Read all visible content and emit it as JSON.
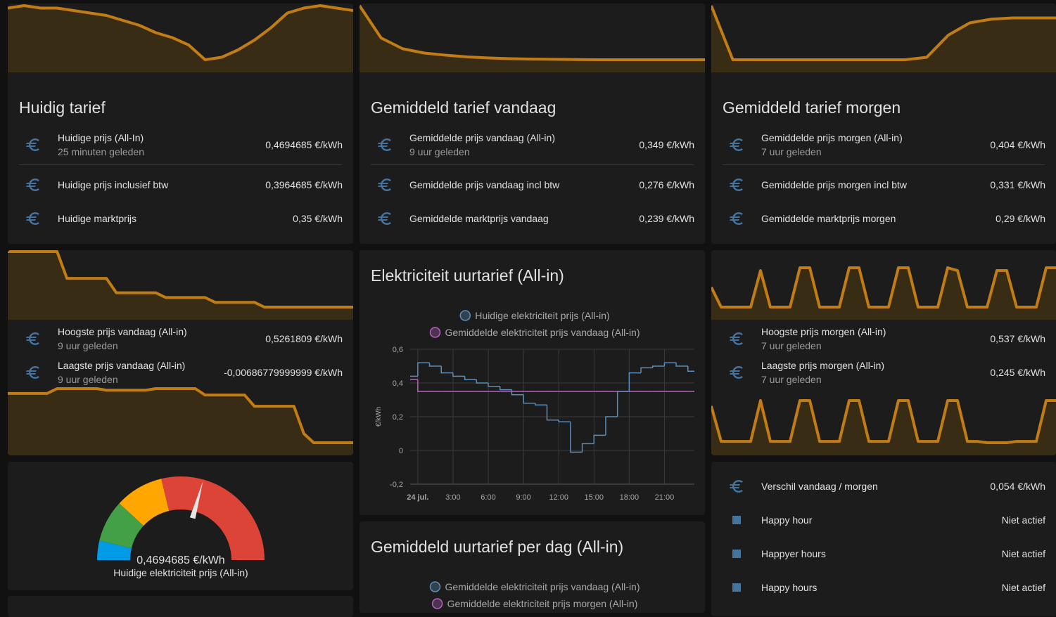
{
  "cards": [
    {
      "title": "Huidig tarief",
      "trend": [
        0.52,
        0.53,
        0.52,
        0.52,
        0.51,
        0.5,
        0.49,
        0.47,
        0.45,
        0.42,
        0.4,
        0.37,
        0.31,
        0.32,
        0.35,
        0.39,
        0.44,
        0.5,
        0.52,
        0.53,
        0.52,
        0.51
      ],
      "rows": [
        {
          "name": "Huidige prijs (All-In)",
          "secondary": "25 minuten geleden",
          "state": "0,4694685 €/kWh"
        },
        {
          "name": "Huidige prijs inclusief btw",
          "state": "0,3964685 €/kWh"
        },
        {
          "name": "Huidige marktprijs",
          "state": "0,35 €/kWh"
        }
      ]
    },
    {
      "title": "Gemiddeld tarief vandaag",
      "trend": [
        0.6,
        0.45,
        0.4,
        0.38,
        0.37,
        0.362,
        0.357,
        0.354,
        0.352,
        0.351,
        0.35,
        0.349,
        0.349,
        0.349,
        0.349,
        0.349,
        0.349
      ],
      "rows": [
        {
          "name": "Gemiddelde prijs vandaag (All-in)",
          "secondary": "9 uur geleden",
          "state": "0,349 €/kWh"
        },
        {
          "name": "Gemiddelde prijs vandaag incl btw",
          "state": "0,276 €/kWh"
        },
        {
          "name": "Gemiddelde marktprijs vandaag",
          "state": "0,239 €/kWh"
        }
      ]
    },
    {
      "title": "Gemiddeld tarief morgen",
      "trend": [
        0.55,
        0.33,
        0.33,
        0.33,
        0.33,
        0.33,
        0.33,
        0.33,
        0.33,
        0.33,
        0.34,
        0.43,
        0.48,
        0.495,
        0.5,
        0.5,
        0.5
      ],
      "rows": [
        {
          "name": "Gemiddelde prijs morgen (All-in)",
          "secondary": "7 uur geleden",
          "state": "0,404 €/kWh"
        },
        {
          "name": "Gemiddelde prijs morgen incl btw",
          "state": "0,331 €/kWh"
        },
        {
          "name": "Gemiddelde marktprijs morgen",
          "state": "0,29 €/kWh"
        }
      ]
    },
    {
      "trends": [
        [
          0.526,
          0.526,
          0.526,
          0.526,
          0.526,
          0.526,
          0.47,
          0.47,
          0.47,
          0.47,
          0.47,
          0.44,
          0.44,
          0.44,
          0.44,
          0.44,
          0.43,
          0.43,
          0.43,
          0.43,
          0.43,
          0.42,
          0.42,
          0.42,
          0.42,
          0.42,
          0.41,
          0.41,
          0.41,
          0.41,
          0.41,
          0.41,
          0.41,
          0.41,
          0.41,
          0.41
        ],
        [
          0.3,
          0.3,
          0.3,
          0.3,
          0.3,
          0.33,
          0.33,
          0.33,
          0.33,
          0.33,
          0.32,
          0.32,
          0.32,
          0.32,
          0.32,
          0.33,
          0.33,
          0.33,
          0.33,
          0.33,
          0.29,
          0.29,
          0.29,
          0.29,
          0.29,
          0.22,
          0.22,
          0.22,
          0.22,
          0.22,
          0.05,
          -0.007,
          -0.007,
          -0.007,
          -0.007,
          -0.007
        ]
      ],
      "rows": [
        {
          "name": "Hoogste prijs vandaag (All-in)",
          "secondary": "9 uur geleden",
          "state": "0,5261809 €/kWh"
        },
        {
          "name": "Laagste prijs vandaag (All-in)",
          "secondary": "9 uur geleden",
          "state": "-0,00686779999999 €/kWh"
        }
      ]
    },
    {
      "trends": [
        [
          0.42,
          0.3,
          0.3,
          0.3,
          0.3,
          0.52,
          0.3,
          0.3,
          0.3,
          0.537,
          0.537,
          0.3,
          0.3,
          0.3,
          0.537,
          0.537,
          0.3,
          0.3,
          0.3,
          0.537,
          0.537,
          0.3,
          0.3,
          0.3,
          0.537,
          0.52,
          0.3,
          0.3,
          0.3,
          0.52,
          0.52,
          0.3,
          0.3,
          0.3,
          0.537,
          0.537
        ],
        [
          0.38,
          0.25,
          0.25,
          0.25,
          0.25,
          0.4,
          0.25,
          0.25,
          0.25,
          0.4,
          0.4,
          0.25,
          0.25,
          0.25,
          0.4,
          0.4,
          0.25,
          0.25,
          0.25,
          0.4,
          0.4,
          0.25,
          0.25,
          0.25,
          0.4,
          0.4,
          0.25,
          0.25,
          0.245,
          0.245,
          0.245,
          0.25,
          0.25,
          0.25,
          0.4,
          0.4
        ]
      ],
      "rows": [
        {
          "name": "Hoogste prijs morgen (All-in)",
          "secondary": "7 uur geleden",
          "state": "0,537 €/kWh"
        },
        {
          "name": "Laagste prijs morgen (All-in)",
          "secondary": "7 uur geleden",
          "state": "0,245 €/kWh"
        }
      ]
    },
    {
      "type": "gauge",
      "min": 0,
      "max": 0.8,
      "value": 0.4694685,
      "value_label": "0,4694685 €/kWh",
      "name": "Huidige elektriciteit prijs (All-in)",
      "segments": [
        {
          "from": 0,
          "color": "#039be5"
        },
        {
          "from": 0.06,
          "color": "#43a047"
        },
        {
          "from": 0.19,
          "color": "#ffa600"
        },
        {
          "from": 0.34,
          "color": "#db4437"
        }
      ]
    },
    {
      "rows": [
        {
          "icon": "euro",
          "name": "Verschil vandaag / morgen",
          "state": "0,054 €/kWh"
        },
        {
          "icon": "square",
          "name": "Happy hour",
          "state": "Niet actief"
        },
        {
          "icon": "square",
          "name": "Happyer hours",
          "state": "Niet actief"
        },
        {
          "icon": "square",
          "name": "Happy hours",
          "state": "Niet actief"
        }
      ]
    },
    {
      "title": "Gemiddeld uurtarief per dag (All-in)",
      "legend": [
        {
          "name": "Gemiddelde elektriciteit prijs vandaag (All-in)",
          "color": "#5b8db8"
        },
        {
          "name": "Gemiddelde elektriciteit prijs morgen (All-in)",
          "color": "#b561bd"
        }
      ]
    }
  ],
  "chart_data": {
    "type": "line",
    "step": true,
    "grid": true,
    "title": "Elektriciteit uurtarief (All-in)",
    "ylabel": "€/kWh",
    "x": [
      -0.65,
      0,
      1,
      2,
      3,
      4,
      5,
      6,
      7,
      8,
      9,
      10,
      11,
      12,
      13,
      14,
      15,
      16,
      17,
      18,
      19,
      20,
      21,
      22,
      23
    ],
    "xlim": [
      -0.65,
      23.55
    ],
    "xticks": [
      {
        "value": 0,
        "label": "24 jul."
      },
      {
        "value": 3,
        "label": "3:00"
      },
      {
        "value": 6,
        "label": "6:00"
      },
      {
        "value": 9,
        "label": "9:00"
      },
      {
        "value": 12,
        "label": "12:00"
      },
      {
        "value": 15,
        "label": "15:00"
      },
      {
        "value": 18,
        "label": "18:00"
      },
      {
        "value": 21,
        "label": "21:00"
      }
    ],
    "ylim": [
      -0.2,
      0.6
    ],
    "yticks": [
      {
        "value": 0.6,
        "label": "0,6"
      },
      {
        "value": 0.4,
        "label": "0,4"
      },
      {
        "value": 0.2,
        "label": "0,2"
      },
      0,
      {
        "value": -0.2,
        "label": "-0,2"
      }
    ],
    "series": [
      {
        "name": "Huidige elektriciteit prijs (All-in)",
        "color": "#5b8db8",
        "values": [
          0.44,
          0.52,
          0.5,
          0.46,
          0.44,
          0.42,
          0.4,
          0.38,
          0.36,
          0.33,
          0.28,
          0.27,
          0.18,
          0.17,
          -0.01,
          0.04,
          0.09,
          0.2,
          0.35,
          0.46,
          0.49,
          0.5,
          0.52,
          0.5,
          0.47
        ]
      },
      {
        "name": "Gemiddelde elektriciteit prijs vandaag (All-in)",
        "color": "#b561bd",
        "values": [
          0.42,
          0.35,
          0.35,
          0.35,
          0.35,
          0.35,
          0.35,
          0.35,
          0.35,
          0.35,
          0.35,
          0.35,
          0.35,
          0.35,
          0.35,
          0.35,
          0.35,
          0.35,
          0.35,
          0.35,
          0.35,
          0.35,
          0.35,
          0.35,
          0.35
        ]
      }
    ]
  }
}
